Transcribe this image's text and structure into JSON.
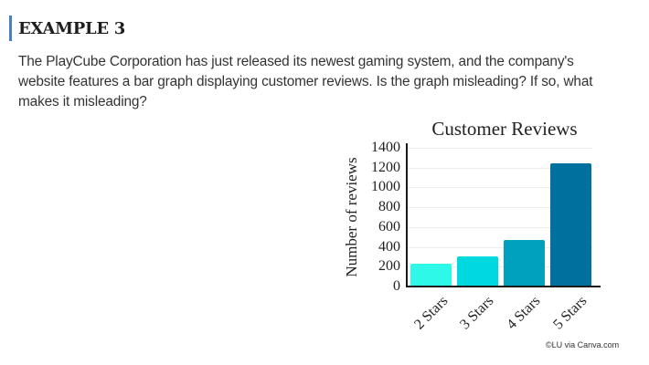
{
  "header": {
    "title": "EXAMPLE 3",
    "accent_color": "#4a7fc1"
  },
  "question": {
    "lines": [
      "The PlayCube Corporation has just released its newest gaming system, and the company's",
      "website features a bar graph displaying customer reviews. Is the graph misleading? If so, what",
      "makes it misleading?"
    ]
  },
  "chart_data": {
    "type": "bar",
    "title": "Customer Reviews",
    "xlabel": "",
    "ylabel": "Number of reviews",
    "categories": [
      "2 Stars",
      "3 Stars",
      "4 Stars",
      "5 Stars"
    ],
    "values": [
      235,
      300,
      470,
      1240
    ],
    "colors": [
      "#2ef9e8",
      "#00d8e0",
      "#00a0bf",
      "#00709f"
    ],
    "ylim": [
      0,
      1400
    ],
    "yticks": [
      0,
      200,
      400,
      600,
      800,
      1000,
      1200,
      1400
    ],
    "grid": true,
    "legend": null
  },
  "credit": "©LU via Canva.com"
}
